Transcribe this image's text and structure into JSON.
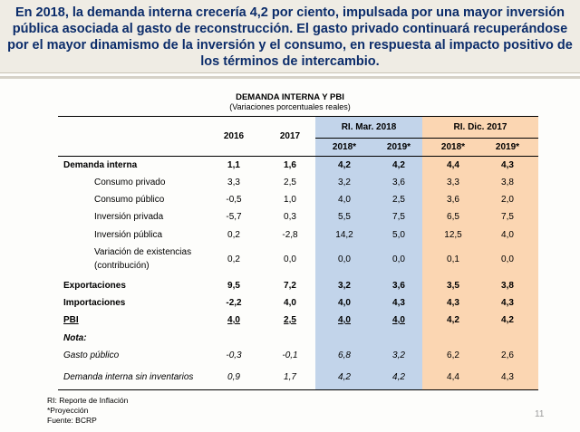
{
  "header": {
    "title": "En 2018, la demanda interna crecería 4,2 por ciento, impulsada por una mayor inversión pública asociada al gasto de reconstrucción. El gasto privado continuará recuperándose por el mayor dinamismo de la inversión y el consumo, en respuesta al impacto positivo de los términos de intercambio."
  },
  "table": {
    "title": "DEMANDA INTERNA Y PBI",
    "subtitle": "(Variaciones porcentuales reales)",
    "year_2016": "2016",
    "year_2017": "2017",
    "group_mar": "RI. Mar. 2018",
    "group_dic": "RI. Dic. 2017",
    "sub_headers": [
      "2018*",
      "2019*",
      "2018*",
      "2019*"
    ],
    "rows": [
      {
        "label": "Demanda interna",
        "values": [
          "1,1",
          "1,6",
          "4,2",
          "4,2",
          "4,4",
          "4,3"
        ]
      },
      {
        "label": "Consumo privado",
        "values": [
          "3,3",
          "2,5",
          "3,2",
          "3,6",
          "3,3",
          "3,8"
        ]
      },
      {
        "label": "Consumo público",
        "values": [
          "-0,5",
          "1,0",
          "4,0",
          "2,5",
          "3,6",
          "2,0"
        ]
      },
      {
        "label": "Inversión privada",
        "values": [
          "-5,7",
          "0,3",
          "5,5",
          "7,5",
          "6,5",
          "7,5"
        ]
      },
      {
        "label": "Inversión pública",
        "values": [
          "0,2",
          "-2,8",
          "14,2",
          "5,0",
          "12,5",
          "4,0"
        ]
      },
      {
        "label": "Variación de existencias",
        "label2": "(contribución)",
        "values": [
          "0,2",
          "0,0",
          "0,0",
          "0,0",
          "0,1",
          "0,0"
        ]
      },
      {
        "label": "Exportaciones",
        "values": [
          "9,5",
          "7,2",
          "3,2",
          "3,6",
          "3,5",
          "3,8"
        ]
      },
      {
        "label": "Importaciones",
        "values": [
          "-2,2",
          "4,0",
          "4,0",
          "4,3",
          "4,3",
          "4,3"
        ]
      },
      {
        "label": "PBI",
        "values": [
          "4,0",
          "2,5",
          "4,0",
          "4,0",
          "4,2",
          "4,2"
        ]
      },
      {
        "label": "Nota:"
      },
      {
        "label": "Gasto público",
        "values": [
          "-0,3",
          "-0,1",
          "6,8",
          "3,2",
          "6,2",
          "2,6"
        ]
      },
      {
        "label": "Demanda interna sin inventarios",
        "values": [
          "0,9",
          "1,7",
          "4,2",
          "4,2",
          "4,4",
          "4,3"
        ]
      }
    ]
  },
  "footnotes": [
    "RI: Reporte de Inflación",
    "*Proyección",
    "Fuente: BCRP"
  ],
  "page_number": "11"
}
